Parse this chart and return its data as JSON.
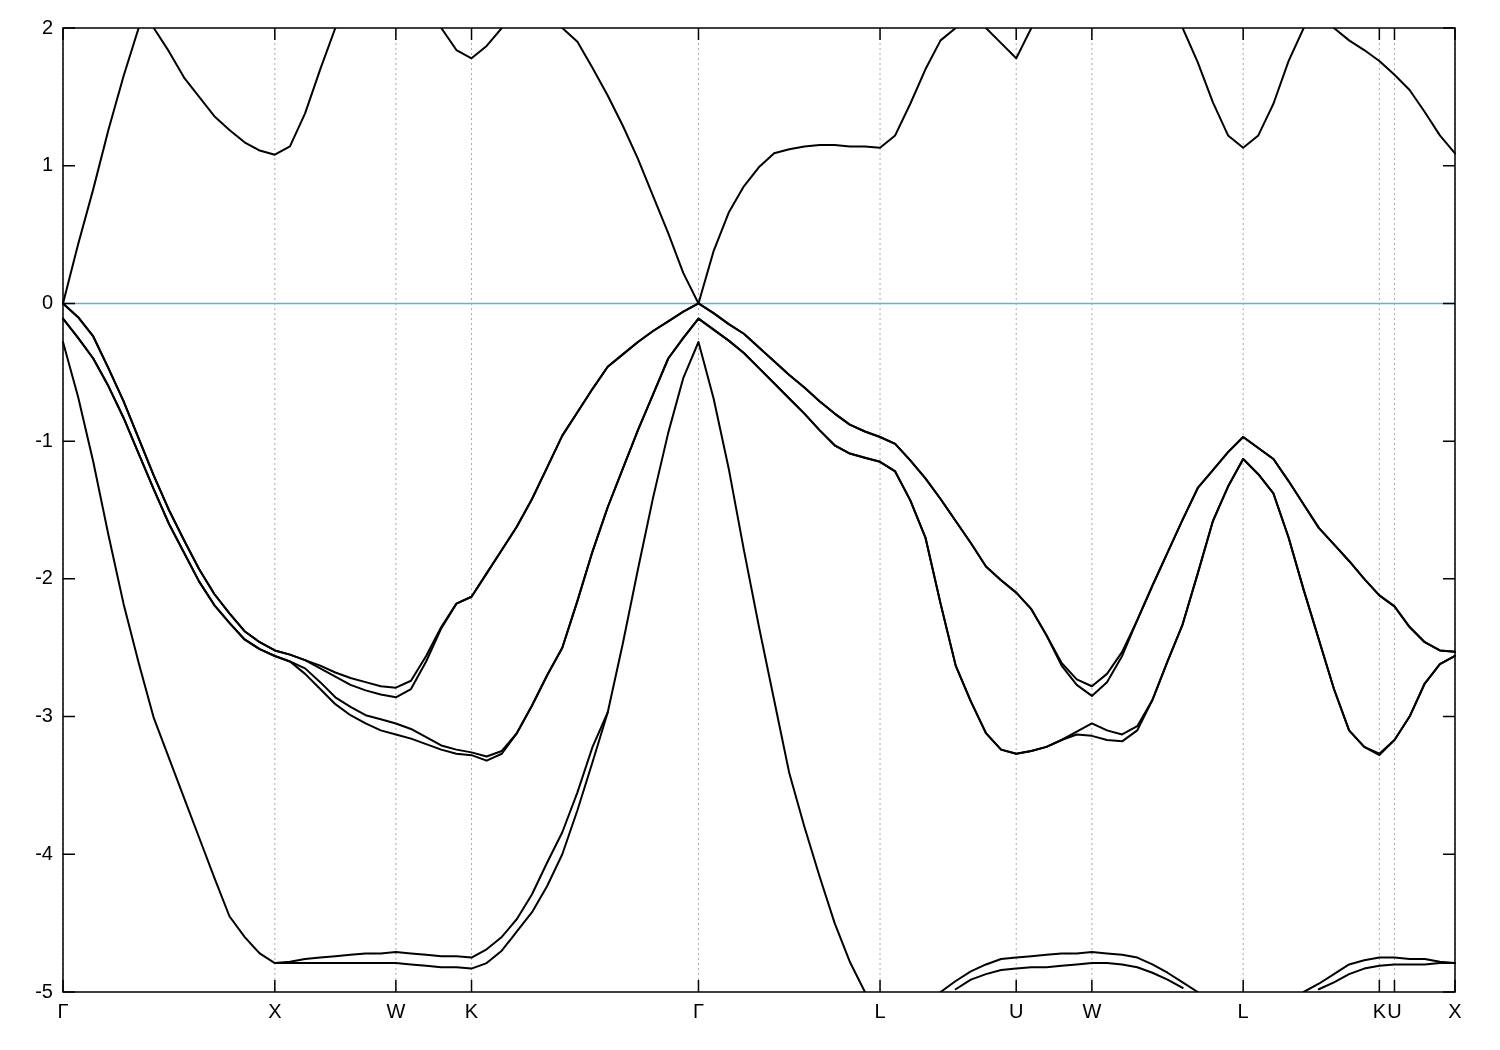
{
  "chart_data": {
    "type": "line",
    "categories": [
      "Γ",
      null,
      null,
      null,
      null,
      null,
      null,
      null,
      null,
      null,
      null,
      null,
      null,
      null,
      "X",
      null,
      null,
      null,
      null,
      null,
      null,
      null,
      "W",
      null,
      null,
      null,
      null,
      "K",
      null,
      null,
      null,
      null,
      null,
      null,
      null,
      null,
      null,
      null,
      null,
      null,
      null,
      null,
      "Γ",
      null,
      null,
      null,
      null,
      null,
      null,
      null,
      null,
      null,
      null,
      null,
      "L",
      null,
      null,
      null,
      null,
      null,
      null,
      null,
      null,
      "U",
      null,
      null,
      null,
      null,
      "W",
      null,
      null,
      null,
      null,
      null,
      null,
      null,
      null,
      null,
      "L",
      null,
      null,
      null,
      null,
      null,
      null,
      null,
      null,
      "K",
      "U",
      null,
      null,
      null,
      "X"
    ],
    "ylim": [
      -5,
      2
    ],
    "yticks": [
      -5,
      -4,
      -3,
      -2,
      -1,
      0,
      1,
      2
    ],
    "grid": "x",
    "legend": false,
    "marker": "none",
    "line_style": "solid",
    "ref_lines": [
      {
        "axis": "y",
        "value": 0,
        "color": "#56b4e9"
      }
    ],
    "series": [
      {
        "color": "#000000",
        "values": [
          0,
          -0.1,
          -0.24,
          -0.47,
          -0.71,
          -0.98,
          -1.25,
          -1.5,
          -1.72,
          -1.93,
          -2.11,
          -2.25,
          -2.38,
          -2.46,
          -2.52,
          -2.55,
          -2.59,
          -2.63,
          -2.68,
          -2.72,
          -2.75,
          -2.78,
          -2.79,
          -2.74,
          -2.56,
          -2.35,
          -2.18,
          -2.13,
          -1.96,
          -1.79,
          -1.62,
          -1.42,
          -1.19,
          -0.96,
          -0.79,
          -0.62,
          -0.46,
          -0.37,
          -0.28,
          -0.2,
          -0.13,
          -0.06,
          0,
          -0.07,
          -0.15,
          -0.22,
          -0.32,
          -0.42,
          -0.52,
          -0.61,
          -0.71,
          -0.8,
          -0.88,
          -0.93,
          -0.97,
          -1.02,
          -1.14,
          -1.27,
          -1.42,
          -1.58,
          -1.74,
          -1.91,
          -2.01,
          -2.1,
          -2.22,
          -2.41,
          -2.61,
          -2.73,
          -2.78,
          -2.69,
          -2.53,
          -2.3,
          -2.05,
          -1.81,
          -1.57,
          -1.34,
          -1.21,
          -1.08,
          -0.97,
          -1.05,
          -1.13,
          -1.29,
          -1.46,
          -1.63,
          -1.75,
          -1.87,
          -2.0,
          -2.12,
          -2.2,
          -2.35,
          -2.46,
          -2.52,
          -2.53
        ]
      },
      {
        "color": "#000000",
        "values": [
          0,
          -0.1,
          -0.24,
          -0.47,
          -0.71,
          -0.98,
          -1.25,
          -1.5,
          -1.72,
          -1.93,
          -2.11,
          -2.25,
          -2.38,
          -2.46,
          -2.52,
          -2.55,
          -2.59,
          -2.65,
          -2.71,
          -2.77,
          -2.81,
          -2.84,
          -2.86,
          -2.8,
          -2.6,
          -2.36,
          -2.18,
          -2.13,
          -1.96,
          -1.79,
          -1.62,
          -1.42,
          -1.19,
          -0.96,
          -0.79,
          -0.62,
          -0.46,
          -0.37,
          -0.28,
          -0.2,
          -0.13,
          -0.06,
          0,
          -0.07,
          -0.15,
          -0.22,
          -0.32,
          -0.42,
          -0.52,
          -0.61,
          -0.71,
          -0.8,
          -0.88,
          -0.93,
          -0.97,
          -1.02,
          -1.14,
          -1.27,
          -1.42,
          -1.58,
          -1.74,
          -1.91,
          -2.01,
          -2.1,
          -2.22,
          -2.41,
          -2.63,
          -2.77,
          -2.85,
          -2.75,
          -2.56,
          -2.3,
          -2.05,
          -1.81,
          -1.57,
          -1.34,
          -1.21,
          -1.08,
          -0.97,
          -1.05,
          -1.13,
          -1.29,
          -1.46,
          -1.63,
          -1.75,
          -1.87,
          -2.0,
          -2.12,
          -2.2,
          -2.35,
          -2.46,
          -2.52,
          -2.53
        ]
      },
      {
        "color": "#000000",
        "values": [
          -0.11,
          -0.25,
          -0.4,
          -0.6,
          -0.83,
          -1.09,
          -1.35,
          -1.6,
          -1.81,
          -2.02,
          -2.19,
          -2.32,
          -2.44,
          -2.51,
          -2.56,
          -2.6,
          -2.65,
          -2.75,
          -2.86,
          -2.93,
          -2.99,
          -3.02,
          -3.05,
          -3.09,
          -3.15,
          -3.21,
          -3.24,
          -3.26,
          -3.29,
          -3.25,
          -3.12,
          -2.92,
          -2.7,
          -2.5,
          -2.16,
          -1.8,
          -1.48,
          -1.2,
          -0.92,
          -0.66,
          -0.4,
          -0.25,
          -0.11,
          -0.19,
          -0.27,
          -0.36,
          -0.47,
          -0.58,
          -0.69,
          -0.8,
          -0.92,
          -1.03,
          -1.09,
          -1.12,
          -1.15,
          -1.22,
          -1.43,
          -1.7,
          -2.18,
          -2.63,
          -2.89,
          -3.12,
          -3.24,
          -3.27,
          -3.25,
          -3.22,
          -3.17,
          -3.11,
          -3.05,
          -3.1,
          -3.13,
          -3.07,
          -2.88,
          -2.6,
          -2.33,
          -1.96,
          -1.58,
          -1.33,
          -1.13,
          -1.24,
          -1.38,
          -1.7,
          -2.08,
          -2.44,
          -2.8,
          -3.1,
          -3.22,
          -3.27,
          -3.17,
          -3.0,
          -2.76,
          -2.62,
          -2.56
        ]
      },
      {
        "color": "#000000",
        "values": [
          -0.11,
          -0.25,
          -0.4,
          -0.6,
          -0.83,
          -1.09,
          -1.35,
          -1.6,
          -1.81,
          -2.02,
          -2.19,
          -2.32,
          -2.44,
          -2.51,
          -2.56,
          -2.6,
          -2.69,
          -2.8,
          -2.91,
          -2.99,
          -3.05,
          -3.1,
          -3.13,
          -3.16,
          -3.2,
          -3.24,
          -3.27,
          -3.28,
          -3.32,
          -3.27,
          -3.12,
          -2.92,
          -2.7,
          -2.5,
          -2.16,
          -1.8,
          -1.48,
          -1.2,
          -0.92,
          -0.66,
          -0.4,
          -0.25,
          -0.11,
          -0.19,
          -0.27,
          -0.36,
          -0.47,
          -0.58,
          -0.69,
          -0.8,
          -0.92,
          -1.03,
          -1.09,
          -1.12,
          -1.15,
          -1.22,
          -1.43,
          -1.7,
          -2.18,
          -2.63,
          -2.89,
          -3.12,
          -3.24,
          -3.27,
          -3.25,
          -3.22,
          -3.17,
          -3.13,
          -3.14,
          -3.17,
          -3.18,
          -3.1,
          -2.88,
          -2.6,
          -2.33,
          -1.96,
          -1.58,
          -1.33,
          -1.13,
          -1.24,
          -1.38,
          -1.7,
          -2.08,
          -2.44,
          -2.8,
          -3.1,
          -3.22,
          -3.28,
          -3.17,
          -3.0,
          -2.76,
          -2.62,
          -2.56
        ]
      },
      {
        "color": "#000000",
        "values": [
          -0.28,
          -0.68,
          -1.15,
          -1.68,
          -2.18,
          -2.61,
          -3.01,
          -3.3,
          -3.59,
          -3.88,
          -4.17,
          -4.45,
          -4.6,
          -4.72,
          -4.79,
          -4.79,
          -4.79,
          -4.79,
          -4.79,
          -4.79,
          -4.79,
          -4.79,
          -4.79,
          -4.8,
          -4.81,
          -4.82,
          -4.82,
          -4.83,
          -4.79,
          -4.7,
          -4.56,
          -4.42,
          -4.23,
          -4.0,
          -3.68,
          -3.33,
          -2.97,
          -2.47,
          -1.93,
          -1.41,
          -0.94,
          -0.54,
          -0.28,
          -0.69,
          -1.2,
          -1.79,
          -2.35,
          -2.88,
          -3.41,
          -3.8,
          -4.16,
          -4.5,
          -4.78,
          -5,
          null,
          null,
          null,
          null,
          null,
          null,
          null,
          null,
          null,
          null,
          null,
          null,
          null,
          null,
          null,
          null,
          null,
          null,
          null,
          null,
          null,
          null,
          null,
          null,
          null,
          null,
          null,
          null,
          null,
          null,
          null,
          null,
          null,
          null,
          null,
          null,
          null,
          null,
          null
        ]
      },
      {
        "color": "#000000",
        "values": [
          null,
          null,
          null,
          null,
          null,
          null,
          null,
          null,
          null,
          null,
          null,
          null,
          null,
          null,
          -4.79,
          -4.78,
          -4.76,
          -4.75,
          -4.74,
          -4.73,
          -4.72,
          -4.72,
          -4.71,
          -4.72,
          -4.73,
          -4.74,
          -4.74,
          -4.75,
          -4.69,
          -4.6,
          -4.47,
          -4.29,
          -4.06,
          -3.84,
          -3.55,
          -3.22,
          -2.97,
          null,
          null,
          null,
          null,
          null,
          null,
          null,
          null,
          null,
          null,
          null,
          null,
          null,
          null,
          null,
          null,
          null,
          null,
          null,
          null,
          null,
          null,
          null,
          null,
          null,
          null,
          null,
          null,
          null,
          null,
          null,
          null,
          null,
          null,
          null,
          null,
          null,
          null,
          null,
          null,
          null,
          null,
          null,
          null,
          null,
          null,
          null,
          null,
          null,
          null,
          null,
          null,
          null,
          null,
          null,
          null
        ]
      },
      {
        "color": "#000000",
        "values": [
          null,
          null,
          null,
          null,
          null,
          null,
          null,
          null,
          null,
          null,
          null,
          null,
          null,
          null,
          null,
          null,
          null,
          null,
          null,
          null,
          null,
          null,
          null,
          null,
          null,
          null,
          null,
          null,
          null,
          null,
          null,
          null,
          null,
          null,
          null,
          null,
          null,
          null,
          null,
          null,
          null,
          null,
          null,
          null,
          null,
          null,
          null,
          null,
          null,
          null,
          null,
          null,
          null,
          null,
          null,
          null,
          null,
          null,
          -5,
          -4.92,
          -4.85,
          -4.8,
          -4.76,
          -4.75,
          -4.74,
          -4.73,
          -4.72,
          -4.72,
          -4.71,
          -4.72,
          -4.73,
          -4.75,
          -4.8,
          -4.86,
          -4.93,
          -5,
          null,
          null,
          null,
          null,
          null,
          null,
          null,
          null,
          null,
          null,
          null,
          null,
          null,
          null,
          null,
          null,
          null
        ]
      },
      {
        "color": "#000000",
        "values": [
          null,
          null,
          null,
          null,
          null,
          null,
          null,
          null,
          null,
          null,
          null,
          null,
          null,
          null,
          null,
          null,
          null,
          null,
          null,
          null,
          null,
          null,
          null,
          null,
          null,
          null,
          null,
          null,
          null,
          null,
          null,
          null,
          null,
          null,
          null,
          null,
          null,
          null,
          null,
          null,
          null,
          null,
          null,
          null,
          null,
          null,
          null,
          null,
          null,
          null,
          null,
          null,
          null,
          null,
          null,
          null,
          null,
          null,
          null,
          -4.98,
          -4.91,
          -4.87,
          -4.84,
          -4.83,
          -4.82,
          -4.82,
          -4.81,
          -4.8,
          -4.79,
          -4.79,
          -4.8,
          -4.82,
          -4.86,
          -4.91,
          -4.97,
          null,
          null,
          null,
          null,
          null,
          null,
          null,
          null,
          null,
          null,
          null,
          null,
          null,
          null,
          null,
          null,
          null,
          null
        ]
      },
      {
        "color": "#000000",
        "values": [
          null,
          null,
          null,
          null,
          null,
          null,
          null,
          null,
          null,
          null,
          null,
          null,
          null,
          null,
          null,
          null,
          null,
          null,
          null,
          null,
          null,
          null,
          null,
          null,
          null,
          null,
          null,
          null,
          null,
          null,
          null,
          null,
          null,
          null,
          null,
          null,
          null,
          null,
          null,
          null,
          null,
          null,
          null,
          null,
          null,
          null,
          null,
          null,
          null,
          null,
          null,
          null,
          null,
          null,
          null,
          null,
          null,
          null,
          null,
          null,
          null,
          null,
          null,
          null,
          null,
          null,
          null,
          null,
          null,
          null,
          null,
          null,
          null,
          null,
          null,
          null,
          null,
          null,
          null,
          null,
          null,
          null,
          -5,
          -4.94,
          -4.87,
          -4.8,
          -4.77,
          -4.75,
          -4.75,
          -4.76,
          -4.76,
          -4.78,
          -4.79
        ]
      },
      {
        "color": "#000000",
        "values": [
          null,
          null,
          null,
          null,
          null,
          null,
          null,
          null,
          null,
          null,
          null,
          null,
          null,
          null,
          null,
          null,
          null,
          null,
          null,
          null,
          null,
          null,
          null,
          null,
          null,
          null,
          null,
          null,
          null,
          null,
          null,
          null,
          null,
          null,
          null,
          null,
          null,
          null,
          null,
          null,
          null,
          null,
          null,
          null,
          null,
          null,
          null,
          null,
          null,
          null,
          null,
          null,
          null,
          null,
          null,
          null,
          null,
          null,
          null,
          null,
          null,
          null,
          null,
          null,
          null,
          null,
          null,
          null,
          null,
          null,
          null,
          null,
          null,
          null,
          null,
          null,
          null,
          null,
          null,
          null,
          null,
          null,
          null,
          -4.98,
          -4.93,
          -4.87,
          -4.83,
          -4.81,
          -4.8,
          -4.8,
          -4.8,
          -4.79,
          -4.79
        ]
      },
      {
        "color": "#000000",
        "values": [
          0,
          0.43,
          0.83,
          1.26,
          1.65,
          2,
          null,
          null,
          null,
          null,
          null,
          null,
          null,
          null,
          null,
          null,
          null,
          null,
          null,
          null,
          null,
          null,
          null,
          null,
          null,
          null,
          null,
          null,
          null,
          null,
          null,
          null,
          null,
          null,
          null,
          null,
          null,
          null,
          null,
          null,
          null,
          null,
          null,
          null,
          null,
          null,
          null,
          null,
          null,
          null,
          null,
          null,
          null,
          null,
          null,
          null,
          null,
          null,
          null,
          null,
          null,
          null,
          null,
          null,
          null,
          null,
          null,
          null,
          null,
          null,
          null,
          null,
          null,
          null,
          null,
          null,
          null,
          null,
          null,
          null,
          null,
          null,
          null,
          null,
          null,
          null,
          null,
          null,
          null,
          null,
          null,
          null,
          null
        ]
      },
      {
        "color": "#000000",
        "values": [
          null,
          null,
          null,
          null,
          null,
          null,
          2,
          1.83,
          1.64,
          1.5,
          1.36,
          1.26,
          1.17,
          1.11,
          1.08,
          1.14,
          1.38,
          1.7,
          2,
          null,
          null,
          null,
          null,
          null,
          null,
          null,
          null,
          null,
          null,
          null,
          null,
          null,
          null,
          null,
          null,
          null,
          null,
          null,
          null,
          null,
          null,
          null,
          null,
          null,
          null,
          null,
          null,
          null,
          null,
          null,
          null,
          null,
          null,
          null,
          null,
          null,
          null,
          null,
          null,
          null,
          null,
          null,
          null,
          null,
          null,
          null,
          null,
          null,
          null,
          null,
          null,
          null,
          null,
          null,
          null,
          null,
          null,
          null,
          null,
          null,
          null,
          null,
          null,
          null,
          null,
          null,
          null,
          null,
          null,
          null,
          null,
          null,
          null
        ]
      },
      {
        "color": "#000000",
        "values": [
          null,
          null,
          null,
          null,
          null,
          null,
          null,
          null,
          null,
          null,
          null,
          null,
          null,
          null,
          null,
          null,
          null,
          null,
          null,
          null,
          null,
          null,
          null,
          null,
          null,
          2,
          1.84,
          1.78,
          1.87,
          2,
          null,
          null,
          null,
          null,
          null,
          null,
          null,
          null,
          null,
          null,
          null,
          null,
          null,
          null,
          null,
          null,
          null,
          null,
          null,
          null,
          null,
          null,
          null,
          null,
          null,
          null,
          null,
          null,
          null,
          null,
          null,
          null,
          null,
          null,
          null,
          null,
          null,
          null,
          null,
          null,
          null,
          null,
          null,
          null,
          null,
          null,
          null,
          null,
          null,
          null,
          null,
          null,
          null,
          null,
          null,
          null,
          null,
          null,
          null,
          null,
          null,
          null,
          null
        ]
      },
      {
        "color": "#000000",
        "values": [
          null,
          null,
          null,
          null,
          null,
          null,
          null,
          null,
          null,
          null,
          null,
          null,
          null,
          null,
          null,
          null,
          null,
          null,
          null,
          null,
          null,
          null,
          null,
          null,
          null,
          null,
          null,
          null,
          null,
          null,
          null,
          null,
          null,
          2,
          1.9,
          1.71,
          1.51,
          1.29,
          1.05,
          0.78,
          0.51,
          0.22,
          0,
          null,
          null,
          null,
          null,
          null,
          null,
          null,
          null,
          null,
          null,
          null,
          null,
          null,
          null,
          null,
          null,
          null,
          null,
          null,
          null,
          null,
          null,
          null,
          null,
          null,
          null,
          null,
          null,
          null,
          null,
          null,
          null,
          null,
          null,
          null,
          null,
          null,
          null,
          null,
          null,
          null,
          null,
          null,
          null,
          null,
          null,
          null,
          null,
          null,
          null
        ]
      },
      {
        "color": "#000000",
        "values": [
          null,
          null,
          null,
          null,
          null,
          null,
          null,
          null,
          null,
          null,
          null,
          null,
          null,
          null,
          null,
          null,
          null,
          null,
          null,
          null,
          null,
          null,
          null,
          null,
          null,
          null,
          null,
          null,
          null,
          null,
          null,
          null,
          null,
          null,
          null,
          null,
          null,
          null,
          null,
          null,
          null,
          null,
          0,
          0.38,
          0.66,
          0.85,
          0.99,
          1.09,
          1.12,
          1.14,
          1.15,
          1.15,
          1.14,
          1.14,
          1.13,
          1.22,
          1.45,
          1.7,
          1.91,
          2,
          null,
          null,
          null,
          null,
          null,
          null,
          null,
          null,
          null,
          null,
          null,
          null,
          null,
          null,
          null,
          null,
          null,
          null,
          null,
          null,
          null,
          null,
          null,
          null,
          null,
          null,
          null,
          null,
          null,
          null,
          null,
          null,
          null
        ]
      },
      {
        "color": "#000000",
        "values": [
          null,
          null,
          null,
          null,
          null,
          null,
          null,
          null,
          null,
          null,
          null,
          null,
          null,
          null,
          null,
          null,
          null,
          null,
          null,
          null,
          null,
          null,
          null,
          null,
          null,
          null,
          null,
          null,
          null,
          null,
          null,
          null,
          null,
          null,
          null,
          null,
          null,
          null,
          null,
          null,
          null,
          null,
          null,
          null,
          null,
          null,
          null,
          null,
          null,
          null,
          null,
          null,
          null,
          null,
          null,
          null,
          null,
          null,
          null,
          null,
          null,
          2,
          1.89,
          1.78,
          2,
          null,
          null,
          null,
          null,
          null,
          null,
          null,
          null,
          null,
          null,
          null,
          null,
          null,
          null,
          null,
          null,
          null,
          null,
          null,
          null,
          null,
          null,
          null,
          null,
          null,
          null,
          null,
          null
        ]
      },
      {
        "color": "#000000",
        "values": [
          null,
          null,
          null,
          null,
          null,
          null,
          null,
          null,
          null,
          null,
          null,
          null,
          null,
          null,
          null,
          null,
          null,
          null,
          null,
          null,
          null,
          null,
          null,
          null,
          null,
          null,
          null,
          null,
          null,
          null,
          null,
          null,
          null,
          null,
          null,
          null,
          null,
          null,
          null,
          null,
          null,
          null,
          null,
          null,
          null,
          null,
          null,
          null,
          null,
          null,
          null,
          null,
          null,
          null,
          null,
          null,
          null,
          null,
          null,
          null,
          null,
          null,
          null,
          null,
          null,
          null,
          null,
          null,
          null,
          null,
          null,
          null,
          null,
          null,
          2,
          1.75,
          1.46,
          1.22,
          1.13,
          1.22,
          1.45,
          1.76,
          2,
          null,
          null,
          null,
          null,
          null,
          null,
          null,
          null,
          null,
          null
        ]
      },
      {
        "color": "#000000",
        "values": [
          null,
          null,
          null,
          null,
          null,
          null,
          null,
          null,
          null,
          null,
          null,
          null,
          null,
          null,
          null,
          null,
          null,
          null,
          null,
          null,
          null,
          null,
          null,
          null,
          null,
          null,
          null,
          null,
          null,
          null,
          null,
          null,
          null,
          null,
          null,
          null,
          null,
          null,
          null,
          null,
          null,
          null,
          null,
          null,
          null,
          null,
          null,
          null,
          null,
          null,
          null,
          null,
          null,
          null,
          null,
          null,
          null,
          null,
          null,
          null,
          null,
          null,
          null,
          null,
          null,
          null,
          null,
          null,
          null,
          null,
          null,
          null,
          null,
          null,
          null,
          null,
          null,
          null,
          null,
          null,
          null,
          null,
          null,
          null,
          2,
          1.91,
          1.84,
          1.76,
          1.66,
          1.55,
          1.39,
          1.22,
          1.09
        ]
      }
    ]
  }
}
